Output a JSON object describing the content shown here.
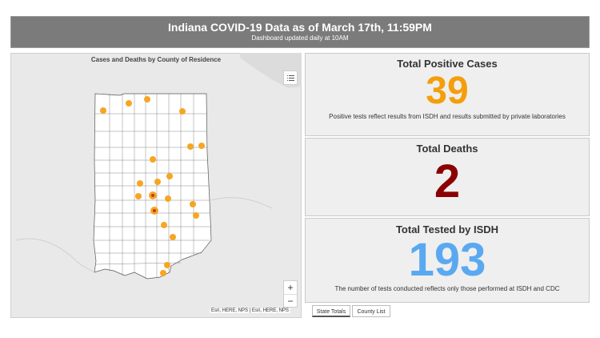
{
  "header": {
    "title": "Indiana COVID-19 Data as of March 17th, 11:59PM",
    "subtitle": "Dashboard updated daily at 10AM"
  },
  "map": {
    "title": "Cases and Deaths by County of Residence",
    "legend_icon": "list-icon",
    "zoom_in": "+",
    "zoom_out": "−",
    "attribution": "Esri, HERE, NPS | Esri, HERE, NPS",
    "state_fill": "#ffffff",
    "marker_color": "#f5a623",
    "death_marker_color": "#c0392b"
  },
  "stats": {
    "positive": {
      "heading": "Total Positive Cases",
      "value": "39",
      "note": "Positive tests reflect results from ISDH and results submitted by private laboratories",
      "color": "#f59e0b"
    },
    "deaths": {
      "heading": "Total Deaths",
      "value": "2",
      "color": "#8b0000"
    },
    "tested": {
      "heading": "Total Tested by ISDH",
      "value": "193",
      "note": "The number of tests conducted reflects only those performed at ISDH and CDC",
      "color": "#5aa9f0"
    }
  },
  "tabs": [
    {
      "label": "State Totals",
      "active": true
    },
    {
      "label": "County List",
      "active": false
    }
  ]
}
